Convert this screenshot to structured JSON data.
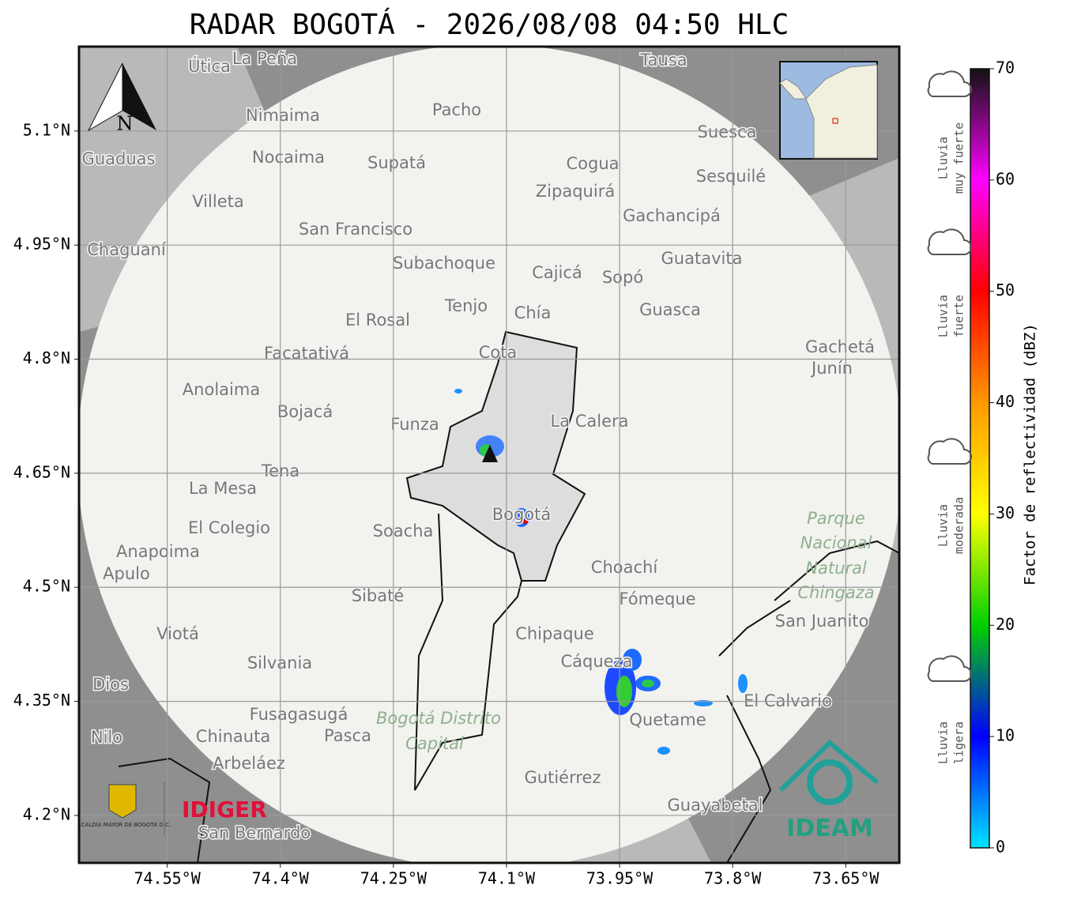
{
  "title": "RADAR BOGOTÁ - 2026/08/08 04:50 HLC",
  "map": {
    "xlim": [
      -74.667,
      -73.579
    ],
    "ylim": [
      4.1376,
      5.211
    ],
    "xticks": [
      {
        "value": -74.55,
        "label": "74.55°W"
      },
      {
        "value": -74.4,
        "label": "74.4°W"
      },
      {
        "value": -74.25,
        "label": "74.25°W"
      },
      {
        "value": -74.1,
        "label": "74.1°W"
      },
      {
        "value": -73.95,
        "label": "73.95°W"
      },
      {
        "value": -73.8,
        "label": "73.8°W"
      },
      {
        "value": -73.65,
        "label": "73.65°W"
      }
    ],
    "yticks": [
      {
        "value": 5.1,
        "label": "5.1°N"
      },
      {
        "value": 4.95,
        "label": "4.95°N"
      },
      {
        "value": 4.8,
        "label": "4.8°N"
      },
      {
        "value": 4.65,
        "label": "4.65°N"
      },
      {
        "value": 4.5,
        "label": "4.5°N"
      },
      {
        "value": 4.35,
        "label": "4.35°N"
      },
      {
        "value": 4.2,
        "label": "4.2°N"
      }
    ],
    "grid": true,
    "north": "N",
    "places": [
      "La Peña",
      "Útica",
      "Tausa",
      "Pacho",
      "Nimaima",
      "Supatá",
      "Nocaima",
      "Guaduas",
      "Suesca",
      "Cogua",
      "Sesquilé",
      "Zipaquirá",
      "Villeta",
      "Gachancipá",
      "San Francisco",
      "Chaguaní",
      "Guatavita",
      "Subachoque",
      "Cajicá",
      "Sopó",
      "Tenjo",
      "Chía",
      "Guasca",
      "El Rosal",
      "Facatativá",
      "Cota",
      "Gachetá",
      "Junín",
      "Anolaima",
      "Bojacá",
      "La Calera",
      "Funza",
      "Tena",
      "La Mesa",
      "Bogotá",
      "Soacha",
      "El Colegio",
      "Anapoima",
      "Apulo",
      "Choachí",
      "Sibaté",
      "Fómeque",
      "San Juanito",
      "Chipaque",
      "Viotá",
      "Cáqueza",
      "Silvania",
      "Dios",
      "El Calvario",
      "Fusagasugá",
      "Quetame",
      "Pasca",
      "Chinauta",
      "Nilo",
      "Arbeláez",
      "Gutiérrez",
      "Guayabetal",
      "San Bernardo"
    ],
    "parks": [
      "Parque",
      "Nacional",
      "Natural",
      "Chingaza",
      "Bogotá Distrito",
      "Capital"
    ],
    "logos": {
      "alcaldia": "ALCALDÍA MAYOR DE BOGOTÁ D.C.",
      "idiger": "IDIGER",
      "ideam": "IDEAM"
    }
  },
  "colorbar": {
    "label": "Factor de reflectividad (dBZ)",
    "clim": [
      0,
      70
    ],
    "ticks": [
      0,
      10,
      20,
      30,
      40,
      50,
      60,
      70
    ],
    "colors": [
      "#00e5ff",
      "#0000ff",
      "#00d000",
      "#ffff00",
      "#ff9900",
      "#ff0000",
      "#ff00ff",
      "#111111"
    ]
  },
  "legend": [
    [
      "Lluvia",
      "muy fuerte"
    ],
    [
      "Lluvia",
      "fuerte"
    ],
    [
      "Lluvia",
      "moderada"
    ],
    [
      "Lluvia",
      "ligera"
    ]
  ]
}
